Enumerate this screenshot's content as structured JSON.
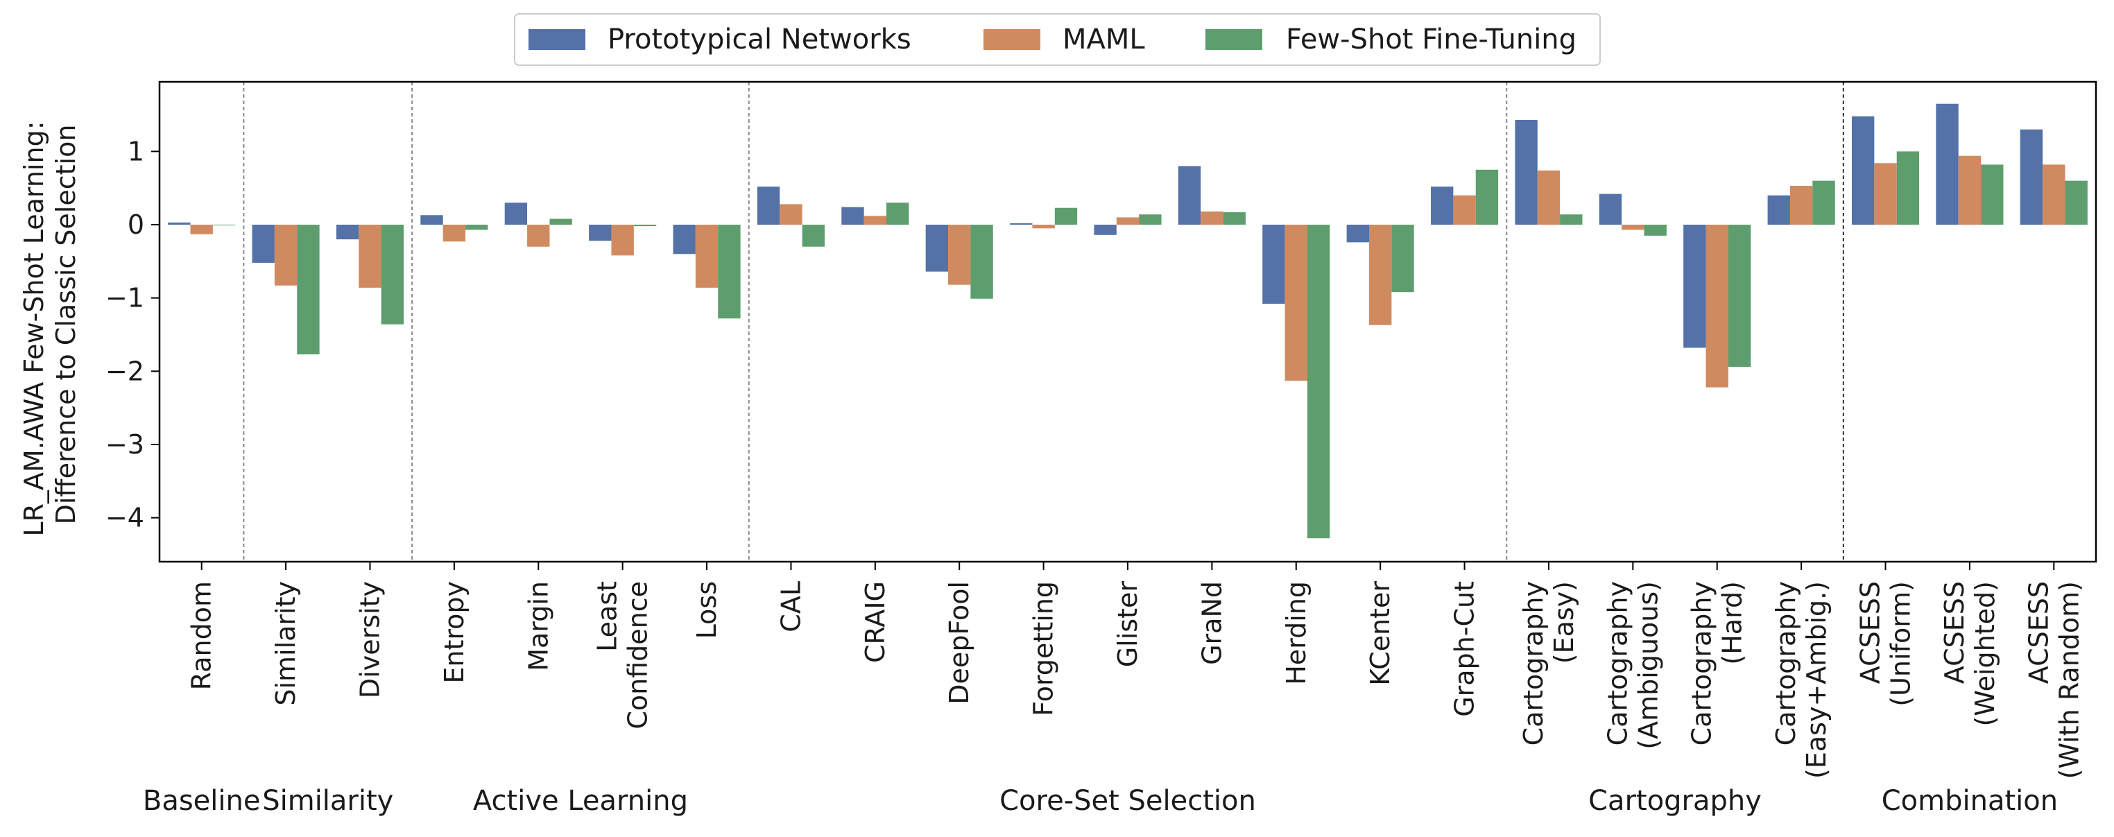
{
  "chart_data": {
    "type": "bar",
    "title": "",
    "xlabel": "",
    "ylabel": "LR_AM.AWA Few-Shot Learning:\nDifference to Classic Selection",
    "ylim": [
      -4.6,
      1.95
    ],
    "yticks": [
      1,
      0,
      -1,
      -2,
      -3,
      -4
    ],
    "ytick_labels": [
      "1",
      "0",
      "−1",
      "−2",
      "−3",
      "−4"
    ],
    "colors": {
      "Prototypical Networks": "#5471a8",
      "MAML": "#d08a60",
      "Few-Shot Fine-Tuning": "#5e9e6e"
    },
    "categories": [
      "Random",
      "Similarity",
      "Diversity",
      "Entropy",
      "Margin",
      "Least\nConfidence",
      "Loss",
      "CAL",
      "CRAIG",
      "DeepFool",
      "Forgetting",
      "Glister",
      "GraNd",
      "Herding",
      "KCenter",
      "Graph-Cut",
      "Cartography\n(Easy)",
      "Cartography\n(Ambiguous)",
      "Cartography\n(Hard)",
      "Cartography\n(Easy+Ambig.)",
      "ACSESS\n(Uniform)",
      "ACSESS\n(Weighted)",
      "ACSESS\n(With Random)"
    ],
    "series": [
      {
        "name": "Prototypical Networks",
        "values": [
          0.03,
          -0.52,
          -0.2,
          0.13,
          0.3,
          -0.22,
          -0.4,
          0.52,
          0.24,
          -0.64,
          0.02,
          -0.14,
          0.8,
          -1.08,
          -0.24,
          0.52,
          1.43,
          0.42,
          -1.68,
          0.4,
          1.48,
          1.65,
          1.3
        ]
      },
      {
        "name": "MAML",
        "values": [
          -0.13,
          -0.83,
          -0.86,
          -0.23,
          -0.3,
          -0.42,
          -0.86,
          0.28,
          0.12,
          -0.82,
          -0.05,
          0.1,
          0.18,
          -2.13,
          -1.37,
          0.4,
          0.74,
          -0.07,
          -2.22,
          0.53,
          0.84,
          0.94,
          0.82
        ]
      },
      {
        "name": "Few-Shot Fine-Tuning",
        "values": [
          0.0,
          -1.77,
          -1.36,
          -0.07,
          0.08,
          -0.02,
          -1.28,
          -0.3,
          0.3,
          -1.01,
          0.23,
          0.14,
          0.17,
          -4.28,
          -0.92,
          0.75,
          0.14,
          -0.15,
          -1.94,
          0.6,
          1.0,
          0.82,
          0.6
        ]
      }
    ],
    "groups": [
      {
        "name": "Baseline",
        "start": 0,
        "end": 0
      },
      {
        "name": "Similarity",
        "start": 1,
        "end": 2
      },
      {
        "name": "Active Learning",
        "start": 3,
        "end": 6
      },
      {
        "name": "Core-Set Selection",
        "start": 7,
        "end": 15
      },
      {
        "name": "Cartography",
        "start": 16,
        "end": 19
      },
      {
        "name": "Combination",
        "start": 20,
        "end": 22
      }
    ],
    "legend_position": "top-center"
  }
}
